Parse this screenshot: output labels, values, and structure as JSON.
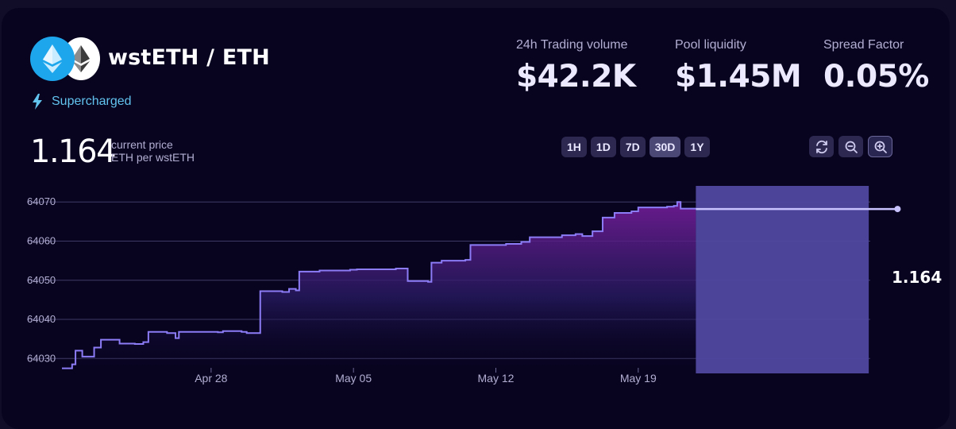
{
  "pool": {
    "title": "wstETH / ETH",
    "tag": "Supercharged",
    "token_icons": [
      "wsteth-icon",
      "eth-icon"
    ]
  },
  "stats": [
    {
      "label": "24h Trading volume",
      "value": "$42.2K"
    },
    {
      "label": "Pool liquidity",
      "value": "$1.45M"
    },
    {
      "label": "Spread Factor",
      "value": "0.05%"
    }
  ],
  "price": {
    "value": "1.164",
    "line1": "current price",
    "line2": "ETH per wstETH",
    "tag": "1.164"
  },
  "range_buttons": [
    "1H",
    "1D",
    "7D",
    "30D",
    "1Y"
  ],
  "active_range": "30D",
  "tools": [
    "refresh-icon",
    "zoom-out-icon",
    "zoom-in-icon"
  ],
  "colors": {
    "accent_line": "#8c7cf6",
    "range_band": "#5048a0",
    "supercharged": "#62c3ee",
    "panel": "#080420"
  },
  "chart_data": {
    "type": "area",
    "y_ticks": [
      {
        "value": 1.16407,
        "label": "64070"
      },
      {
        "value": 1.16406,
        "label": "64060"
      },
      {
        "value": 1.16405,
        "label": "64050"
      },
      {
        "value": 1.16404,
        "label": "64040"
      },
      {
        "value": 1.16403,
        "label": "64030"
      }
    ],
    "x_ticks": [
      {
        "date": "2024-04-28",
        "label": "Apr 28"
      },
      {
        "date": "2024-05-05",
        "label": "May 05"
      },
      {
        "date": "2024-05-12",
        "label": "May 12"
      },
      {
        "date": "2024-05-19",
        "label": "May 19"
      }
    ],
    "ylim": [
      1.1640262,
      1.1640737
    ],
    "xlim": [
      "2024-04-20T16:00",
      "2024-05-22T20:00"
    ],
    "series": [
      {
        "values": [
          [
            "2024-04-20T16:00",
            1.1640275
          ],
          [
            "2024-04-21T04:00",
            1.1640285
          ],
          [
            "2024-04-21T08:00",
            1.164032
          ],
          [
            "2024-04-21T16:00",
            1.1640305
          ],
          [
            "2024-04-22T06:00",
            1.1640328
          ],
          [
            "2024-04-22T14:00",
            1.1640348
          ],
          [
            "2024-04-23T12:00",
            1.1640338
          ],
          [
            "2024-04-24T06:00",
            1.1640337
          ],
          [
            "2024-04-24T16:00",
            1.1640342
          ],
          [
            "2024-04-24T22:00",
            1.1640368
          ],
          [
            "2024-04-25T20:00",
            1.1640365
          ],
          [
            "2024-04-26T06:00",
            1.1640352
          ],
          [
            "2024-04-26T10:00",
            1.1640368
          ],
          [
            "2024-04-27T16:00",
            1.1640368
          ],
          [
            "2024-04-28T08:00",
            1.1640367
          ],
          [
            "2024-04-28T14:00",
            1.164037
          ],
          [
            "2024-04-29T12:00",
            1.1640368
          ],
          [
            "2024-04-29T18:00",
            1.1640365
          ],
          [
            "2024-04-30T06:00",
            1.1640365
          ],
          [
            "2024-04-30T10:00",
            1.1640472
          ],
          [
            "2024-05-01T12:00",
            1.164047
          ],
          [
            "2024-05-01T20:00",
            1.1640478
          ],
          [
            "2024-05-02T04:00",
            1.1640474
          ],
          [
            "2024-05-02T08:00",
            1.1640522
          ],
          [
            "2024-05-03T08:00",
            1.1640525
          ],
          [
            "2024-05-04T20:00",
            1.1640527
          ],
          [
            "2024-05-05T04:00",
            1.1640528
          ],
          [
            "2024-05-07T02:00",
            1.164053
          ],
          [
            "2024-05-07T12:00",
            1.164053
          ],
          [
            "2024-05-07T16:00",
            1.1640498
          ],
          [
            "2024-05-08T16:00",
            1.1640496
          ],
          [
            "2024-05-08T20:00",
            1.1640545
          ],
          [
            "2024-05-09T08:00",
            1.164055
          ],
          [
            "2024-05-10T12:00",
            1.1640552
          ],
          [
            "2024-05-10T18:00",
            1.164059
          ],
          [
            "2024-05-12T12:00",
            1.1640593
          ],
          [
            "2024-05-13T06:00",
            1.1640598
          ],
          [
            "2024-05-13T16:00",
            1.164061
          ],
          [
            "2024-05-14T14:00",
            1.164061
          ],
          [
            "2024-05-15T06:00",
            1.1640615
          ],
          [
            "2024-05-15T22:00",
            1.1640618
          ],
          [
            "2024-05-16T06:00",
            1.1640613
          ],
          [
            "2024-05-16T18:00",
            1.1640625
          ],
          [
            "2024-05-17T06:00",
            1.164066
          ],
          [
            "2024-05-17T20:00",
            1.1640672
          ],
          [
            "2024-05-18T16:00",
            1.1640676
          ],
          [
            "2024-05-19T00:00",
            1.1640686
          ],
          [
            "2024-05-20T10:00",
            1.1640688
          ],
          [
            "2024-05-20T18:00",
            1.164069
          ],
          [
            "2024-05-20T22:00",
            1.16407
          ],
          [
            "2024-05-21T02:00",
            1.1640683
          ],
          [
            "2024-05-21T20:00",
            1.1640682
          ]
        ]
      }
    ],
    "range_band": {
      "x_from": "2024-05-21T20:00",
      "x_to": "2024-05-30T08:00"
    },
    "current_price_line": {
      "y": 1.1640682,
      "x_to": "2024-05-31T18:00"
    }
  }
}
